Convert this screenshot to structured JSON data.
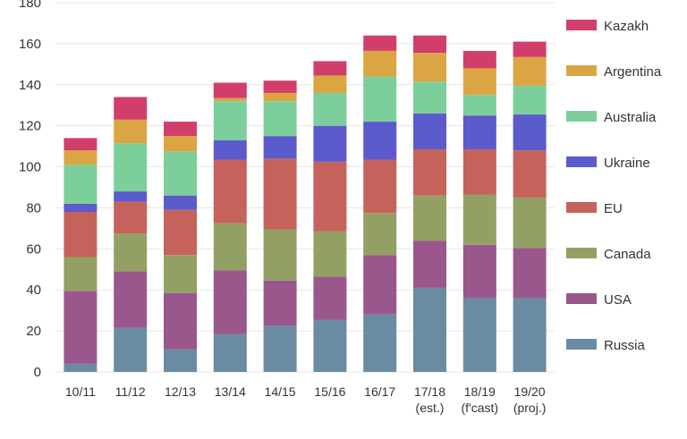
{
  "chart_data": {
    "type": "bar",
    "stacked": true,
    "title": "",
    "xlabel": "",
    "ylabel": "",
    "ylim": [
      0,
      180
    ],
    "yticks": [
      0,
      20,
      40,
      60,
      80,
      100,
      120,
      140,
      160,
      180
    ],
    "grid": true,
    "legend_placement": "right",
    "categories": [
      [
        "10/11"
      ],
      [
        "11/12"
      ],
      [
        "12/13"
      ],
      [
        "13/14"
      ],
      [
        "14/15"
      ],
      [
        "15/16"
      ],
      [
        "16/17"
      ],
      [
        "17/18",
        "(est.)"
      ],
      [
        "18/19",
        "(f'cast)"
      ],
      [
        "19/20",
        "(proj.)"
      ]
    ],
    "series": [
      {
        "name": "Russia",
        "color": "#6a8ca3",
        "values": [
          4,
          21.5,
          11,
          18.5,
          22.5,
          25.5,
          28,
          41,
          36,
          36
        ]
      },
      {
        "name": "USA",
        "color": "#9a578c",
        "values": [
          35.5,
          27.5,
          27.5,
          31,
          22,
          21,
          29,
          23,
          26,
          24.5
        ]
      },
      {
        "name": "Canada",
        "color": "#93a064",
        "values": [
          16.5,
          18.5,
          18.5,
          23,
          25,
          22,
          20.5,
          22,
          24.5,
          24.5
        ]
      },
      {
        "name": "EU",
        "color": "#c6625c",
        "values": [
          22,
          15.5,
          22,
          31,
          34.5,
          34,
          26,
          22.5,
          22,
          23
        ]
      },
      {
        "name": "Ukraine",
        "color": "#5b5bcc",
        "values": [
          4,
          5,
          7,
          9.5,
          11,
          17.5,
          18.5,
          17.5,
          16.5,
          17.5
        ]
      },
      {
        "name": "Australia",
        "color": "#7ccf9a",
        "values": [
          19,
          23.5,
          21.5,
          19,
          17,
          16,
          22,
          15.5,
          10,
          14
        ]
      },
      {
        "name": "Argentina",
        "color": "#dba544",
        "values": [
          7,
          11.5,
          7.5,
          1.5,
          4,
          8.5,
          12.5,
          14,
          13,
          14
        ]
      },
      {
        "name": "Kazakh",
        "color": "#d23e6a",
        "values": [
          6,
          11,
          7,
          7.5,
          6,
          7,
          7.5,
          8.5,
          8.5,
          7.5
        ]
      }
    ]
  }
}
